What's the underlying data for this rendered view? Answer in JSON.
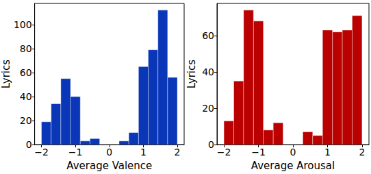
{
  "chart_data": [
    {
      "type": "histogram",
      "x_label": "Average Valence",
      "y_label": "Lyrics",
      "bins": [
        -2,
        -1.714,
        -1.429,
        -1.143,
        -0.857,
        -0.571,
        -0.286,
        0,
        0.286,
        0.571,
        0.857,
        1.143,
        1.429,
        1.714,
        2
      ],
      "values": [
        19,
        34,
        55,
        40,
        3,
        5,
        0,
        0,
        3,
        10,
        65,
        79,
        112,
        56
      ],
      "color": "#0a37b8",
      "xlim": [
        -2.2,
        2.2
      ],
      "ylim": [
        0,
        117.6
      ],
      "xticks": [
        {
          "value": -2,
          "label": "−2"
        },
        {
          "value": -1,
          "label": "−1"
        },
        0,
        1,
        2
      ],
      "yticks": [
        0,
        20,
        40,
        60,
        80,
        100
      ],
      "grid": false
    },
    {
      "type": "histogram",
      "x_label": "Average Arousal",
      "y_label": "Lyrics",
      "bins": [
        -2,
        -1.714,
        -1.429,
        -1.143,
        -0.857,
        -0.571,
        -0.286,
        0,
        0.286,
        0.571,
        0.857,
        1.143,
        1.429,
        1.714,
        2
      ],
      "values": [
        13,
        35,
        74,
        68,
        8,
        12,
        0,
        0,
        7,
        5,
        63,
        62,
        63,
        71
      ],
      "color": "#bb0000",
      "xlim": [
        -2.2,
        2.2
      ],
      "ylim": [
        0,
        77.7
      ],
      "xticks": [
        {
          "value": -2,
          "label": "−2"
        },
        {
          "value": -1,
          "label": "−1"
        },
        0,
        1,
        2
      ],
      "yticks": [
        0,
        20,
        40,
        60
      ],
      "grid": false
    }
  ]
}
